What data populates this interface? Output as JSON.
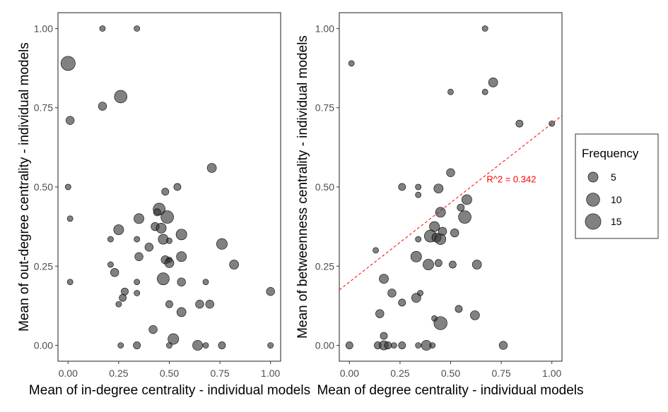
{
  "chart_data": [
    {
      "type": "scatter",
      "xlabel": "Mean of in-degree centrality - individual models",
      "ylabel": "Mean of out-degree centrality - individual models",
      "xlim": [
        -0.05,
        1.05
      ],
      "ylim": [
        -0.05,
        1.05
      ],
      "x_ticks": [
        "0.00",
        "0.25",
        "0.50",
        "0.75",
        "1.00"
      ],
      "y_ticks": [
        "0.00",
        "0.25",
        "0.50",
        "0.75",
        "1.00"
      ],
      "grid": false,
      "point_color": "#333333",
      "points": [
        {
          "x": 0.0,
          "y": 0.89,
          "size": 12
        },
        {
          "x": 0.17,
          "y": 1.0,
          "size": 1
        },
        {
          "x": 0.34,
          "y": 1.0,
          "size": 1
        },
        {
          "x": 0.26,
          "y": 0.785,
          "size": 9
        },
        {
          "x": 0.17,
          "y": 0.755,
          "size": 3
        },
        {
          "x": 0.01,
          "y": 0.71,
          "size": 3
        },
        {
          "x": 0.71,
          "y": 0.56,
          "size": 4
        },
        {
          "x": 0.0,
          "y": 0.5,
          "size": 1
        },
        {
          "x": 0.54,
          "y": 0.5,
          "size": 2
        },
        {
          "x": 0.48,
          "y": 0.485,
          "size": 2
        },
        {
          "x": 0.45,
          "y": 0.43,
          "size": 8
        },
        {
          "x": 0.44,
          "y": 0.42,
          "size": 2
        },
        {
          "x": 0.49,
          "y": 0.405,
          "size": 9
        },
        {
          "x": 0.35,
          "y": 0.4,
          "size": 5
        },
        {
          "x": 0.01,
          "y": 0.4,
          "size": 1
        },
        {
          "x": 0.43,
          "y": 0.375,
          "size": 3
        },
        {
          "x": 0.46,
          "y": 0.37,
          "size": 5
        },
        {
          "x": 0.25,
          "y": 0.365,
          "size": 5
        },
        {
          "x": 0.56,
          "y": 0.35,
          "size": 6
        },
        {
          "x": 0.21,
          "y": 0.335,
          "size": 1
        },
        {
          "x": 0.34,
          "y": 0.335,
          "size": 1
        },
        {
          "x": 0.47,
          "y": 0.335,
          "size": 5
        },
        {
          "x": 0.5,
          "y": 0.33,
          "size": 1
        },
        {
          "x": 0.76,
          "y": 0.32,
          "size": 6
        },
        {
          "x": 0.4,
          "y": 0.31,
          "size": 3
        },
        {
          "x": 0.35,
          "y": 0.28,
          "size": 3
        },
        {
          "x": 0.56,
          "y": 0.28,
          "size": 5
        },
        {
          "x": 0.48,
          "y": 0.27,
          "size": 3
        },
        {
          "x": 0.5,
          "y": 0.27,
          "size": 1
        },
        {
          "x": 0.5,
          "y": 0.26,
          "size": 4
        },
        {
          "x": 0.21,
          "y": 0.255,
          "size": 1
        },
        {
          "x": 0.82,
          "y": 0.255,
          "size": 4
        },
        {
          "x": 0.23,
          "y": 0.23,
          "size": 3
        },
        {
          "x": 0.47,
          "y": 0.21,
          "size": 8
        },
        {
          "x": 0.34,
          "y": 0.2,
          "size": 1
        },
        {
          "x": 0.68,
          "y": 0.2,
          "size": 1
        },
        {
          "x": 0.01,
          "y": 0.2,
          "size": 1
        },
        {
          "x": 0.56,
          "y": 0.2,
          "size": 3
        },
        {
          "x": 0.28,
          "y": 0.17,
          "size": 2
        },
        {
          "x": 0.34,
          "y": 0.165,
          "size": 1
        },
        {
          "x": 1.0,
          "y": 0.17,
          "size": 3
        },
        {
          "x": 0.27,
          "y": 0.15,
          "size": 2
        },
        {
          "x": 0.25,
          "y": 0.13,
          "size": 1
        },
        {
          "x": 0.5,
          "y": 0.13,
          "size": 2
        },
        {
          "x": 0.65,
          "y": 0.13,
          "size": 3
        },
        {
          "x": 0.7,
          "y": 0.13,
          "size": 3
        },
        {
          "x": 0.56,
          "y": 0.105,
          "size": 4
        },
        {
          "x": 0.42,
          "y": 0.05,
          "size": 3
        },
        {
          "x": 0.52,
          "y": 0.02,
          "size": 6
        },
        {
          "x": 0.26,
          "y": 0.0,
          "size": 1
        },
        {
          "x": 0.34,
          "y": 0.0,
          "size": 2
        },
        {
          "x": 0.5,
          "y": 0.0,
          "size": 1
        },
        {
          "x": 0.64,
          "y": 0.0,
          "size": 5
        },
        {
          "x": 0.68,
          "y": 0.0,
          "size": 1
        },
        {
          "x": 0.76,
          "y": 0.0,
          "size": 2
        },
        {
          "x": 1.0,
          "y": 0.0,
          "size": 1
        }
      ]
    },
    {
      "type": "scatter",
      "xlabel": "Mean of degree centrality - individual models",
      "ylabel": "Mean of betweenness centrality - individual models",
      "xlim": [
        -0.05,
        1.05
      ],
      "ylim": [
        -0.05,
        1.05
      ],
      "x_ticks": [
        "0.00",
        "0.25",
        "0.50",
        "0.75",
        "1.00"
      ],
      "y_ticks": [
        "0.00",
        "0.25",
        "0.50",
        "0.75",
        "1.00"
      ],
      "grid": false,
      "point_color": "#333333",
      "regression": {
        "intercept": 0.2,
        "slope": 0.5,
        "style": "dashed",
        "color": "#ff0000"
      },
      "annotation": {
        "text": "R^2 = 0.342",
        "x": 0.8,
        "y": 0.515,
        "color": "#ff0000"
      },
      "points": [
        {
          "x": 0.67,
          "y": 1.0,
          "size": 1
        },
        {
          "x": 0.01,
          "y": 0.89,
          "size": 1
        },
        {
          "x": 0.71,
          "y": 0.83,
          "size": 4
        },
        {
          "x": 0.5,
          "y": 0.8,
          "size": 1
        },
        {
          "x": 0.67,
          "y": 0.8,
          "size": 1
        },
        {
          "x": 0.84,
          "y": 0.7,
          "size": 2
        },
        {
          "x": 1.0,
          "y": 0.7,
          "size": 1
        },
        {
          "x": 0.5,
          "y": 0.545,
          "size": 3
        },
        {
          "x": 0.26,
          "y": 0.5,
          "size": 2
        },
        {
          "x": 0.34,
          "y": 0.5,
          "size": 1
        },
        {
          "x": 0.44,
          "y": 0.495,
          "size": 4
        },
        {
          "x": 0.34,
          "y": 0.475,
          "size": 1
        },
        {
          "x": 0.58,
          "y": 0.46,
          "size": 5
        },
        {
          "x": 0.55,
          "y": 0.435,
          "size": 2
        },
        {
          "x": 0.45,
          "y": 0.42,
          "size": 5
        },
        {
          "x": 0.57,
          "y": 0.405,
          "size": 9
        },
        {
          "x": 0.42,
          "y": 0.375,
          "size": 5
        },
        {
          "x": 0.46,
          "y": 0.36,
          "size": 3
        },
        {
          "x": 0.52,
          "y": 0.355,
          "size": 3
        },
        {
          "x": 0.4,
          "y": 0.345,
          "size": 8
        },
        {
          "x": 0.43,
          "y": 0.34,
          "size": 4
        },
        {
          "x": 0.45,
          "y": 0.335,
          "size": 6
        },
        {
          "x": 0.34,
          "y": 0.335,
          "size": 1
        },
        {
          "x": 0.13,
          "y": 0.3,
          "size": 1
        },
        {
          "x": 0.33,
          "y": 0.28,
          "size": 6
        },
        {
          "x": 0.44,
          "y": 0.26,
          "size": 2
        },
        {
          "x": 0.51,
          "y": 0.255,
          "size": 2
        },
        {
          "x": 0.63,
          "y": 0.255,
          "size": 4
        },
        {
          "x": 0.39,
          "y": 0.255,
          "size": 6
        },
        {
          "x": 0.17,
          "y": 0.21,
          "size": 4
        },
        {
          "x": 0.21,
          "y": 0.165,
          "size": 3
        },
        {
          "x": 0.35,
          "y": 0.165,
          "size": 1
        },
        {
          "x": 0.33,
          "y": 0.15,
          "size": 4
        },
        {
          "x": 0.26,
          "y": 0.135,
          "size": 2
        },
        {
          "x": 0.54,
          "y": 0.115,
          "size": 2
        },
        {
          "x": 0.62,
          "y": 0.095,
          "size": 4
        },
        {
          "x": 0.15,
          "y": 0.1,
          "size": 3
        },
        {
          "x": 0.42,
          "y": 0.085,
          "size": 1
        },
        {
          "x": 0.45,
          "y": 0.07,
          "size": 10
        },
        {
          "x": 0.17,
          "y": 0.03,
          "size": 2
        },
        {
          "x": 0.0,
          "y": 0.0,
          "size": 2
        },
        {
          "x": 0.14,
          "y": 0.0,
          "size": 2
        },
        {
          "x": 0.17,
          "y": 0.0,
          "size": 4
        },
        {
          "x": 0.19,
          "y": 0.0,
          "size": 2
        },
        {
          "x": 0.22,
          "y": 0.0,
          "size": 1
        },
        {
          "x": 0.26,
          "y": 0.0,
          "size": 2
        },
        {
          "x": 0.34,
          "y": 0.0,
          "size": 1
        },
        {
          "x": 0.38,
          "y": 0.0,
          "size": 5
        },
        {
          "x": 0.41,
          "y": 0.0,
          "size": 1
        },
        {
          "x": 0.76,
          "y": 0.0,
          "size": 3
        }
      ]
    }
  ],
  "legend": {
    "title": "Frequency",
    "items": [
      {
        "label": "5",
        "size": 5
      },
      {
        "label": "10",
        "size": 10
      },
      {
        "label": "15",
        "size": 15
      }
    ]
  }
}
